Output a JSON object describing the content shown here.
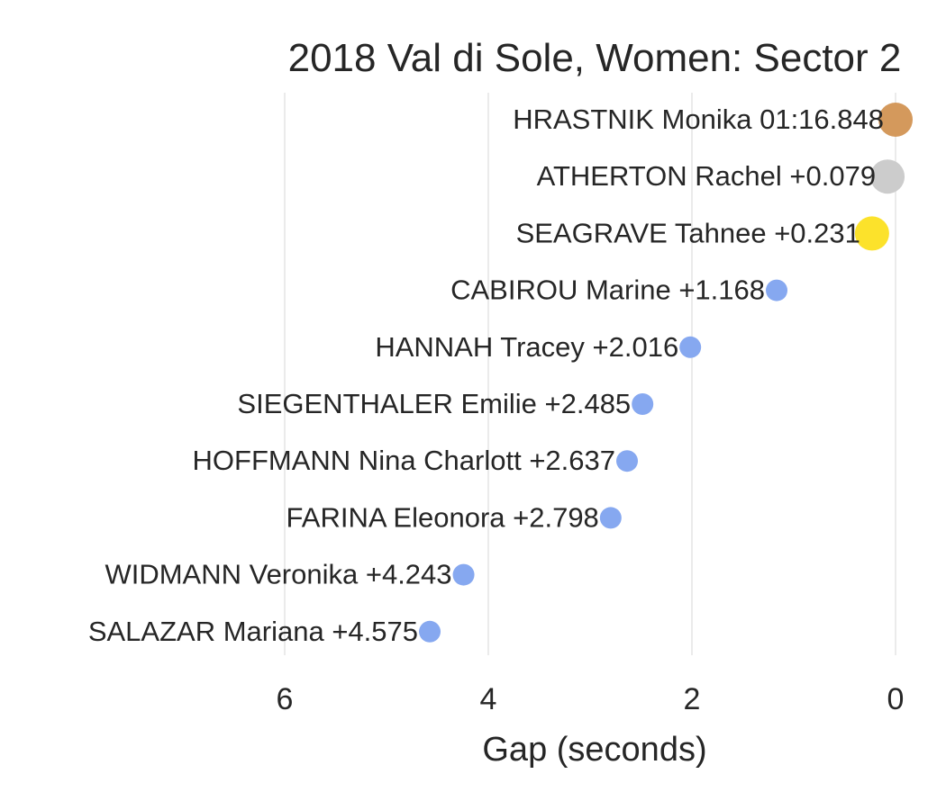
{
  "chart_data": {
    "type": "scatter",
    "title": "2018 Val di Sole, Women: Sector 2",
    "xlabel": "Gap (seconds)",
    "ylabel": "",
    "xlim": [
      7.5,
      0
    ],
    "x_inverted": true,
    "x_ticks": [
      6,
      4,
      2,
      0
    ],
    "grid": "vertical",
    "colors": {
      "gold": "#fce22b",
      "silver": "#cccccc",
      "bronze": "#d4995c",
      "other": "#86a8f0"
    },
    "points": [
      {
        "rider": "HRASTNIK Monika",
        "label": "HRASTNIK Monika 01:16.848",
        "gap": 0.0,
        "medal": "bronze"
      },
      {
        "rider": "ATHERTON Rachel",
        "label": "ATHERTON Rachel +0.079",
        "gap": 0.079,
        "medal": "silver"
      },
      {
        "rider": "SEAGRAVE Tahnee",
        "label": "SEAGRAVE Tahnee +0.231",
        "gap": 0.231,
        "medal": "gold"
      },
      {
        "rider": "CABIROU Marine",
        "label": "CABIROU Marine +1.168",
        "gap": 1.168,
        "medal": "other"
      },
      {
        "rider": "HANNAH Tracey",
        "label": "HANNAH Tracey +2.016",
        "gap": 2.016,
        "medal": "other"
      },
      {
        "rider": "SIEGENTHALER Emilie",
        "label": "SIEGENTHALER Emilie +2.485",
        "gap": 2.485,
        "medal": "other"
      },
      {
        "rider": "HOFFMANN Nina Charlott",
        "label": "HOFFMANN Nina Charlott +2.637",
        "gap": 2.637,
        "medal": "other"
      },
      {
        "rider": "FARINA Eleonora",
        "label": "FARINA Eleonora +2.798",
        "gap": 2.798,
        "medal": "other"
      },
      {
        "rider": "WIDMANN Veronika",
        "label": "WIDMANN Veronika +4.243",
        "gap": 4.243,
        "medal": "other"
      },
      {
        "rider": "SALAZAR Mariana",
        "label": "SALAZAR Mariana +4.575",
        "gap": 4.575,
        "medal": "other"
      }
    ]
  }
}
